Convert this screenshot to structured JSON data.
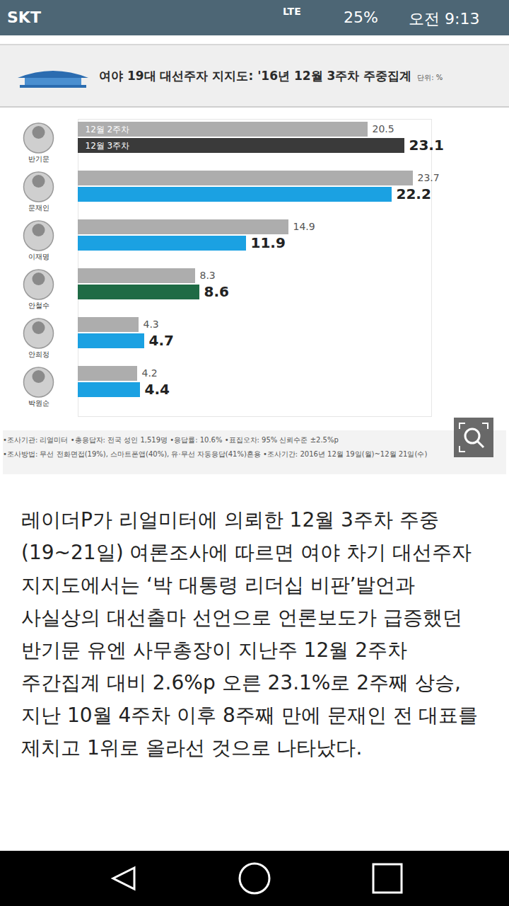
{
  "status_bar": {
    "carrier": "SKT",
    "network": "LTE",
    "battery": "25%",
    "time": "오전 9:13"
  },
  "chart_data": {
    "type": "bar",
    "orientation": "horizontal",
    "title": "여야 19대 대선주자 지지도: '16년 12월 3주차 주중집계",
    "subtitle": "단위: %",
    "categories": [
      "반기문",
      "문재인",
      "이재명",
      "안철수",
      "안희정",
      "박원순"
    ],
    "series": [
      {
        "name": "12월 2주차",
        "color": "#adadad",
        "values": [
          20.5,
          23.7,
          14.9,
          8.3,
          4.3,
          4.2
        ]
      },
      {
        "name": "12월 3주차",
        "colors": [
          "#3a3a3a",
          "#1ba1e2",
          "#1ba1e2",
          "#1f6b45",
          "#1ba1e2",
          "#1ba1e2"
        ],
        "values": [
          23.1,
          22.2,
          11.9,
          8.6,
          4.7,
          4.4
        ]
      }
    ],
    "xlim": [
      0,
      25
    ],
    "tick_labels": false,
    "grid": false,
    "data_labels": true,
    "annotations": [
      "•조사기관: 리얼미터 •총응답자: 전국 성인 1,519명 •응답률: 10.6% •표집오차: 95% 신뢰수준 ±2.5%p",
      "•조사방법: 무선 전화면접(19%), 스마트폰앱(40%), 유·무선 자동응답(41%)혼용 •조사기간: 2016년 12월 19일(월)~12월 21일(수)"
    ]
  },
  "article": {
    "text": "레이더P가 리얼미터에 의뢰한 12월 3주차 주중(19~21일) 여론조사에 따르면 여야 차기 대선주자 지지도에서는 ‘박 대통령 리더십 비판’발언과 사실상의 대선출마 선언으로 언론보도가 급증했던 반기문 유엔 사무총장이 지난주 12월 2주차 주간집계 대비 2.6%p 오른 23.1%로 2주째 상승, 지난 10월 4주차 이후 8주째 만에 문재인 전 대표를 제치고 1위로 올라선 것으로 나타났다."
  }
}
